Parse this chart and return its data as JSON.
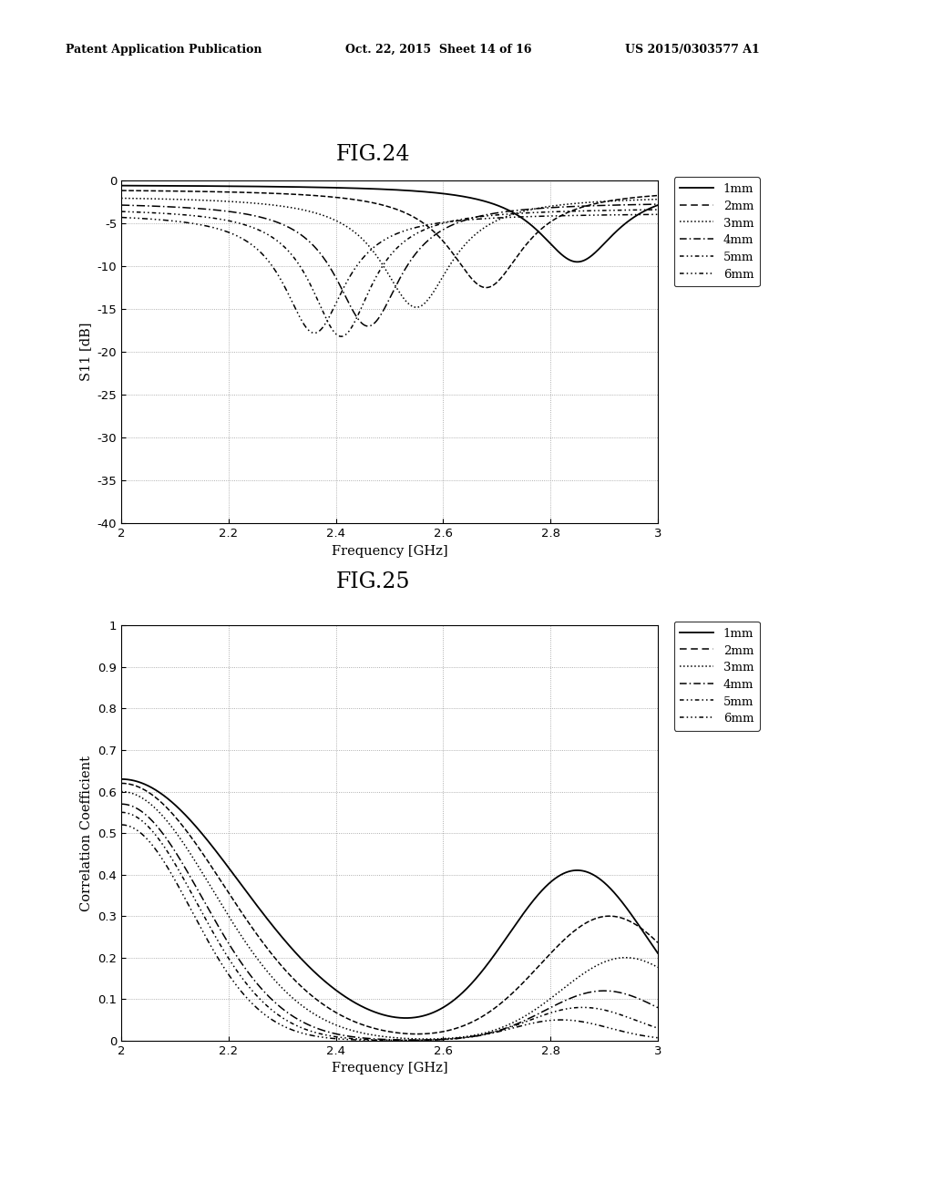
{
  "header_left": "Patent Application Publication",
  "header_mid": "Oct. 22, 2015  Sheet 14 of 16",
  "header_right": "US 2015/0303577 A1",
  "fig24_title": "FIG.24",
  "fig25_title": "FIG.25",
  "xlabel": "Frequency [GHz]",
  "fig24_ylabel": "S11 [dB]",
  "fig25_ylabel": "Correlation Coefficient",
  "fig24_xlim": [
    2,
    3
  ],
  "fig24_ylim": [
    -40,
    0
  ],
  "fig25_xlim": [
    2,
    3
  ],
  "fig25_ylim": [
    0,
    1
  ],
  "fig24_yticks": [
    0,
    -5,
    -10,
    -15,
    -20,
    -25,
    -30,
    -35,
    -40
  ],
  "fig24_xticks": [
    2,
    2.2,
    2.4,
    2.6,
    2.8,
    3
  ],
  "fig25_yticks": [
    0,
    0.1,
    0.2,
    0.3,
    0.4,
    0.5,
    0.6,
    0.7,
    0.8,
    0.9,
    1
  ],
  "fig25_xticks": [
    2,
    2.2,
    2.4,
    2.6,
    2.8,
    3
  ],
  "legend_labels": [
    "1mm",
    "2mm",
    "3mm",
    "4mm",
    "5mm",
    "6mm"
  ],
  "background_color": "#ffffff"
}
